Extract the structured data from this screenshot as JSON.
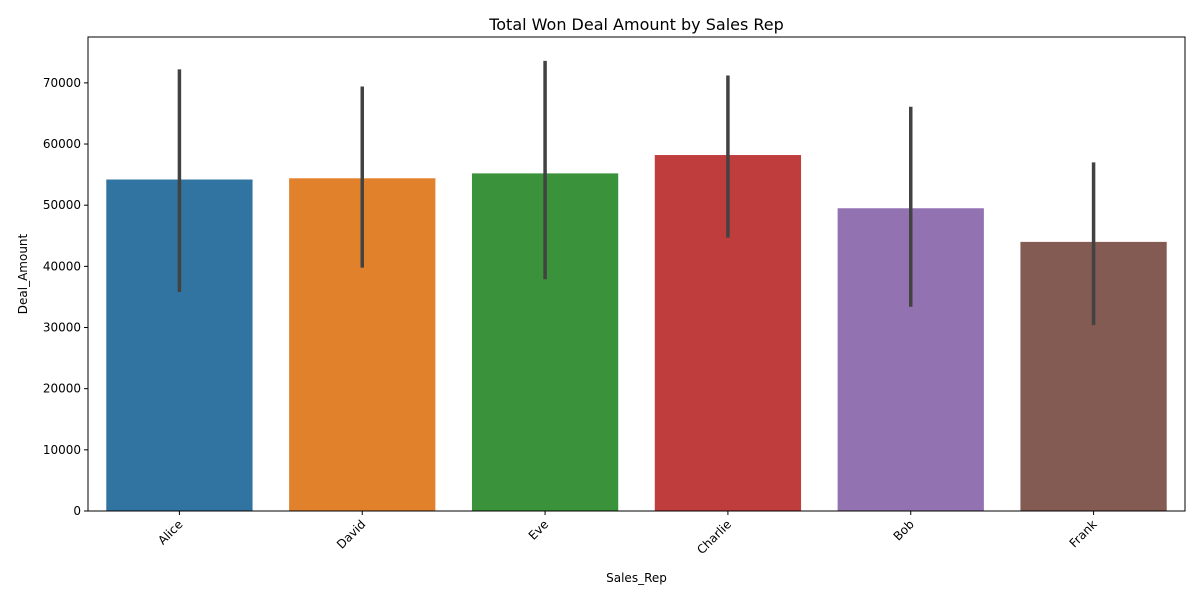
{
  "chart_data": {
    "type": "bar",
    "title": "Total Won Deal Amount by Sales Rep",
    "xlabel": "Sales_Rep",
    "ylabel": "Deal_Amount",
    "categories": [
      "Alice",
      "David",
      "Eve",
      "Charlie",
      "Bob",
      "Frank"
    ],
    "values": [
      54200,
      54400,
      55200,
      58200,
      49500,
      44000
    ],
    "error_low": [
      35800,
      39800,
      37900,
      44700,
      33400,
      30400
    ],
    "error_high": [
      72200,
      69400,
      73600,
      71200,
      66100,
      57000
    ],
    "colors": [
      "#3274a1",
      "#e1812c",
      "#3a923a",
      "#c03d3e",
      "#9372b2",
      "#845b53"
    ],
    "errorbar_color": "#424242",
    "ylim": [
      0,
      77500
    ],
    "yticks": [
      0,
      10000,
      20000,
      30000,
      40000,
      50000,
      60000,
      70000
    ],
    "ytick_labels": [
      "0",
      "10000",
      "20000",
      "30000",
      "40000",
      "50000",
      "60000",
      "70000"
    ],
    "xtick_rotation": 45,
    "grid": false,
    "legend": "none"
  }
}
